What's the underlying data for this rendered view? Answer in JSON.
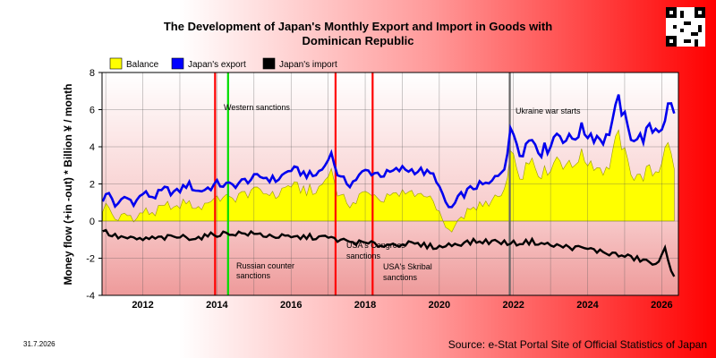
{
  "chart_data": {
    "type": "line",
    "title": "The Development of Japan's Monthly Export and Import in Goods with Dominican Republic",
    "ylabel": "Money flow (+in -out) * Billion ¥ / month",
    "xlabel": "",
    "x_ticks": [
      "2012",
      "2014",
      "2016",
      "2018",
      "2020",
      "2022",
      "2024",
      "2026"
    ],
    "y_ticks": [
      "-4",
      "-2",
      "0",
      "2",
      "4",
      "6",
      "8"
    ],
    "ylim": [
      -4,
      8
    ],
    "xlim": [
      2010.9,
      2026.45
    ],
    "grid": true,
    "legend_position": "top-left",
    "legend": [
      {
        "label": "Balance",
        "color": "#ffff00"
      },
      {
        "label": "Japan's export",
        "color": "#0000ff"
      },
      {
        "label": "Japan's import",
        "color": "#000000"
      }
    ],
    "events": [
      {
        "x": 2013.95,
        "label": "",
        "color": "#ff0000"
      },
      {
        "x": 2014.3,
        "label": "Western sanctions",
        "color": "#00dd00"
      },
      {
        "x": 2014.35,
        "label": "Russian counter sanctions",
        "color": "#00dd00"
      },
      {
        "x": 2017.2,
        "label": "USA's Congress sanctions",
        "color": "#ff0000"
      },
      {
        "x": 2018.2,
        "label": "USA's Skribal sanctions",
        "color": "#ff0000"
      },
      {
        "x": 2021.9,
        "label": "Ukraine war starts",
        "color": "#666666"
      }
    ],
    "export_anchors": [
      [
        2010.92,
        1.2
      ],
      [
        2011.1,
        1.5
      ],
      [
        2011.3,
        0.7
      ],
      [
        2011.5,
        1.3
      ],
      [
        2011.8,
        1.0
      ],
      [
        2012.0,
        1.5
      ],
      [
        2012.3,
        1.3
      ],
      [
        2012.6,
        1.7
      ],
      [
        2012.9,
        1.5
      ],
      [
        2013.2,
        2.0
      ],
      [
        2013.5,
        1.6
      ],
      [
        2013.8,
        1.8
      ],
      [
        2014.0,
        2.0
      ],
      [
        2014.4,
        1.9
      ],
      [
        2014.8,
        2.2
      ],
      [
        2015.2,
        2.4
      ],
      [
        2015.6,
        2.2
      ],
      [
        2016.0,
        2.8
      ],
      [
        2016.3,
        2.6
      ],
      [
        2016.6,
        2.4
      ],
      [
        2016.9,
        2.9
      ],
      [
        2017.05,
        3.8
      ],
      [
        2017.3,
        2.3
      ],
      [
        2017.6,
        2.0
      ],
      [
        2018.0,
        2.7
      ],
      [
        2018.5,
        2.5
      ],
      [
        2019.0,
        2.8
      ],
      [
        2019.5,
        2.7
      ],
      [
        2019.9,
        2.4
      ],
      [
        2020.1,
        1.2
      ],
      [
        2020.3,
        0.6
      ],
      [
        2020.6,
        1.4
      ],
      [
        2021.0,
        1.9
      ],
      [
        2021.4,
        2.0
      ],
      [
        2021.8,
        3.3
      ],
      [
        2021.95,
        5.0
      ],
      [
        2022.2,
        3.8
      ],
      [
        2022.5,
        4.5
      ],
      [
        2022.8,
        3.7
      ],
      [
        2023.2,
        4.8
      ],
      [
        2023.5,
        4.3
      ],
      [
        2023.8,
        4.9
      ],
      [
        2024.2,
        4.6
      ],
      [
        2024.5,
        4.4
      ],
      [
        2024.85,
        6.5
      ],
      [
        2025.1,
        4.8
      ],
      [
        2025.4,
        4.4
      ],
      [
        2025.7,
        4.9
      ],
      [
        2026.0,
        5.1
      ],
      [
        2026.2,
        6.3
      ],
      [
        2026.35,
        6.0
      ]
    ],
    "import_anchors": [
      [
        2010.92,
        -0.5
      ],
      [
        2011.2,
        -0.8
      ],
      [
        2011.5,
        -0.9
      ],
      [
        2011.8,
        -1.0
      ],
      [
        2012.2,
        -0.95
      ],
      [
        2012.6,
        -0.9
      ],
      [
        2013.0,
        -0.85
      ],
      [
        2013.5,
        -0.9
      ],
      [
        2014.0,
        -0.7
      ],
      [
        2014.5,
        -0.65
      ],
      [
        2015.0,
        -0.7
      ],
      [
        2015.5,
        -0.8
      ],
      [
        2016.0,
        -0.9
      ],
      [
        2016.5,
        -0.85
      ],
      [
        2017.0,
        -0.9
      ],
      [
        2017.5,
        -1.1
      ],
      [
        2018.0,
        -1.2
      ],
      [
        2018.5,
        -1.3
      ],
      [
        2019.0,
        -1.2
      ],
      [
        2019.5,
        -1.3
      ],
      [
        2020.0,
        -1.4
      ],
      [
        2020.5,
        -1.2
      ],
      [
        2021.0,
        -1.1
      ],
      [
        2021.5,
        -1.1
      ],
      [
        2022.0,
        -1.2
      ],
      [
        2022.5,
        -1.1
      ],
      [
        2023.0,
        -1.3
      ],
      [
        2023.5,
        -1.4
      ],
      [
        2024.0,
        -1.5
      ],
      [
        2024.5,
        -1.7
      ],
      [
        2025.0,
        -1.9
      ],
      [
        2025.5,
        -2.1
      ],
      [
        2025.9,
        -2.4
      ],
      [
        2026.1,
        -1.4
      ],
      [
        2026.25,
        -2.6
      ],
      [
        2026.35,
        -2.9
      ]
    ]
  },
  "header": {
    "title_line1": "The Development of Japan's Monthly Export and Import in Goods with",
    "title_line2": "Dominican Republic"
  },
  "footer": {
    "source": "Source: e-Stat Portal Site of Official Statistics of Japan",
    "date": "31.7.2026"
  }
}
